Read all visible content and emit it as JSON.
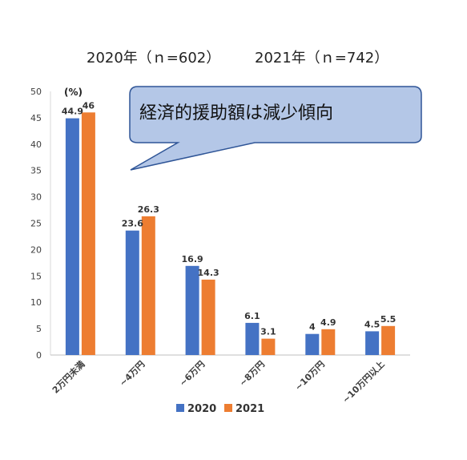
{
  "chart_data": {
    "type": "bar",
    "title_2020": "2020年（ｎ=602）",
    "title_2021": "2021年（ｎ=742）",
    "unit_label": "(%)",
    "categories": [
      "2万円未満",
      "~4万円",
      "~6万円",
      "~8万円",
      "~10万円",
      "~10万円以上"
    ],
    "series": [
      {
        "name": "2020",
        "color": "#4472C4",
        "values": [
          44.9,
          23.6,
          16.9,
          6.1,
          4,
          4.5
        ]
      },
      {
        "name": "2021",
        "color": "#ED7D31",
        "values": [
          46,
          26.3,
          14.3,
          3.1,
          4.9,
          5.5
        ]
      }
    ],
    "data_labels": [
      [
        "44.9",
        "23.6",
        "16.9",
        "6.1",
        "4",
        "4.5"
      ],
      [
        "46",
        "26.3",
        "14.3",
        "3.1",
        "4.9",
        "5.5"
      ]
    ],
    "ylim": [
      0,
      50
    ],
    "yticks": [
      0,
      5,
      10,
      15,
      20,
      25,
      30,
      35,
      40,
      45,
      50
    ],
    "grid": false,
    "legend_position": "bottom",
    "callout": {
      "text": "経済的援助額は減少傾向",
      "fill": "#B4C7E7",
      "stroke": "#2F5597"
    }
  }
}
